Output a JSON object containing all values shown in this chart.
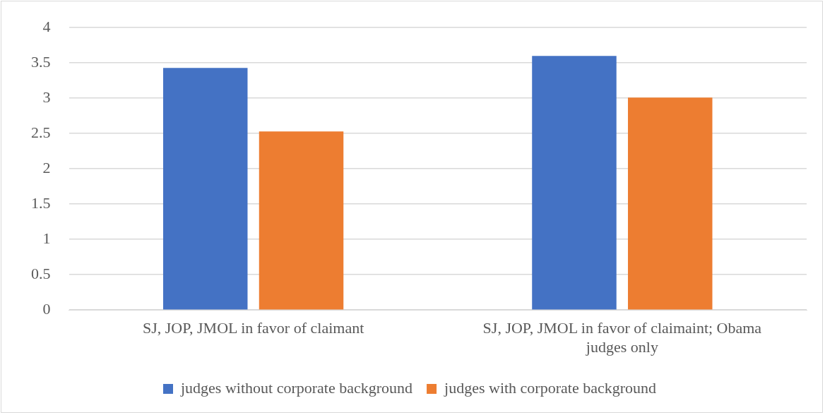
{
  "chart_data": {
    "type": "bar",
    "categories": [
      "SJ, JOP, JMOL in favor of claimant",
      "SJ, JOP, JMOL in favor of claimaint; Obama judges only"
    ],
    "series": [
      {
        "name": "judges without corporate background",
        "color": "#4472c4",
        "values": [
          3.43,
          3.6
        ]
      },
      {
        "name": "judges with corporate background",
        "color": "#ed7d31",
        "values": [
          2.53,
          3.01
        ]
      }
    ],
    "ylim": [
      0,
      4
    ],
    "yticks": [
      0,
      0.5,
      1,
      1.5,
      2,
      2.5,
      3,
      3.5,
      4
    ],
    "grid": "y",
    "legend": "bottom"
  }
}
